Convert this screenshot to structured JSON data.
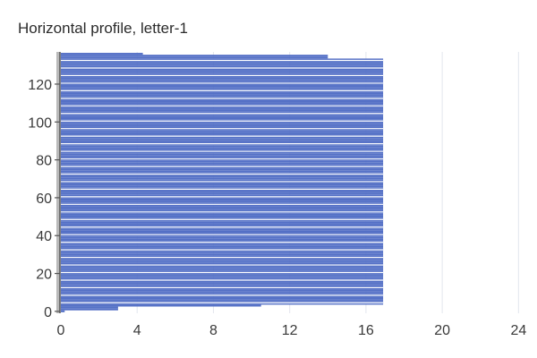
{
  "chart_data": {
    "type": "bar",
    "orientation": "horizontal",
    "title": "Horizontal profile, letter-1",
    "xlabel": "",
    "ylabel": "",
    "xlim": [
      0,
      24.5
    ],
    "ylim": [
      -1,
      137
    ],
    "x_ticks": [
      0,
      4,
      8,
      12,
      16,
      20,
      24
    ],
    "y_ticks": [
      0,
      20,
      40,
      60,
      80,
      100,
      120
    ],
    "grid": "vertical",
    "bar_color": "#5470c6",
    "categories": [
      0,
      1,
      2,
      3,
      4,
      5,
      6,
      7,
      8,
      9,
      10,
      11,
      12,
      13,
      14,
      15,
      16,
      17,
      18,
      19,
      20,
      21,
      22,
      23,
      24,
      25,
      26,
      27,
      28,
      29,
      30,
      31,
      32,
      33,
      34,
      35,
      36,
      37,
      38,
      39,
      40,
      41,
      42,
      43,
      44,
      45,
      46,
      47,
      48,
      49,
      50,
      51,
      52,
      53,
      54,
      55,
      56,
      57,
      58,
      59,
      60,
      61,
      62,
      63,
      64,
      65,
      66,
      67,
      68,
      69,
      70,
      71,
      72,
      73,
      74,
      75,
      76,
      77,
      78,
      79,
      80,
      81,
      82,
      83,
      84,
      85,
      86,
      87,
      88,
      89,
      90,
      91,
      92,
      93,
      94,
      95,
      96,
      97,
      98,
      99,
      100,
      101,
      102,
      103,
      104,
      105,
      106,
      107,
      108,
      109,
      110,
      111,
      112,
      113,
      114,
      115,
      116,
      117,
      118,
      119,
      120,
      121,
      122,
      123,
      124,
      125,
      126,
      127,
      128,
      129,
      130,
      131,
      132,
      133,
      134,
      135,
      136
    ],
    "values": [
      0.2,
      3,
      3,
      10.5,
      16.9,
      16.9,
      16.9,
      16.9,
      16.9,
      16.9,
      16.9,
      16.9,
      16.9,
      16.9,
      16.9,
      16.9,
      16.9,
      16.9,
      16.9,
      16.9,
      16.9,
      16.9,
      16.9,
      16.9,
      16.9,
      16.9,
      16.9,
      16.9,
      16.9,
      16.9,
      16.9,
      16.9,
      16.9,
      16.9,
      16.9,
      16.9,
      16.9,
      16.9,
      16.9,
      16.9,
      16.9,
      16.9,
      16.9,
      16.9,
      16.9,
      16.9,
      16.9,
      16.9,
      16.9,
      16.9,
      16.9,
      16.9,
      16.9,
      16.9,
      16.9,
      16.9,
      16.9,
      16.9,
      16.9,
      16.9,
      16.9,
      16.9,
      16.9,
      16.9,
      16.9,
      16.9,
      16.9,
      16.9,
      16.9,
      16.9,
      16.9,
      16.9,
      16.9,
      16.9,
      16.9,
      16.9,
      16.9,
      16.9,
      16.9,
      16.9,
      16.9,
      16.9,
      16.9,
      16.9,
      16.9,
      16.9,
      16.9,
      16.9,
      16.9,
      16.9,
      16.9,
      16.9,
      16.9,
      16.9,
      16.9,
      16.9,
      16.9,
      16.9,
      16.9,
      16.9,
      16.9,
      16.9,
      16.9,
      16.9,
      16.9,
      16.9,
      16.9,
      16.9,
      16.9,
      16.9,
      16.9,
      16.9,
      16.9,
      16.9,
      16.9,
      16.9,
      16.9,
      16.9,
      16.9,
      16.9,
      16.9,
      16.9,
      16.9,
      16.9,
      16.9,
      16.9,
      16.9,
      16.9,
      16.9,
      16.9,
      16.9,
      16.9,
      16.9,
      16.9,
      14,
      14,
      4.3
    ]
  }
}
